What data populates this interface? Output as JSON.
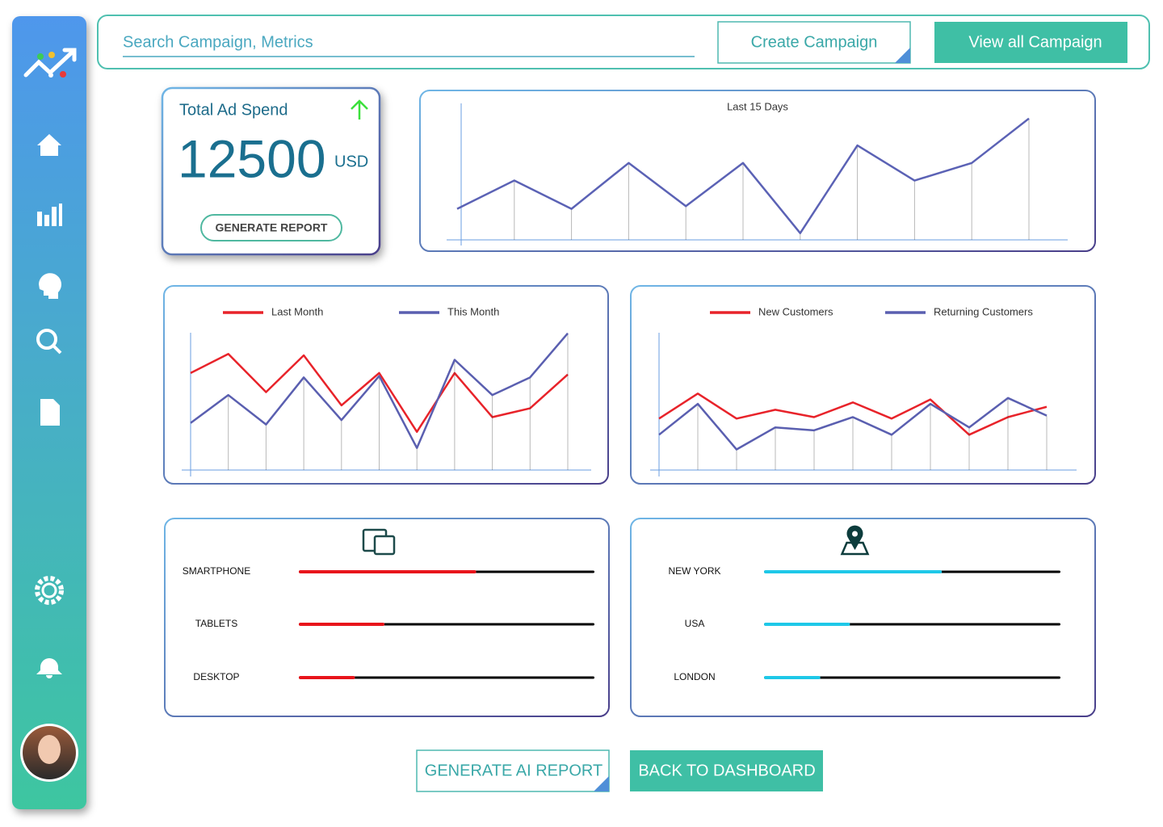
{
  "header": {
    "search_placeholder": "Search Campaign, Metrics",
    "create_button": "Create Campaign",
    "view_button": "View all Campaign"
  },
  "spend_card": {
    "title": "Total Ad Spend",
    "value": 12500,
    "unit": "USD",
    "button": "GENERATE REPORT"
  },
  "footer": {
    "ai_button": "GENERATE AI REPORT",
    "back_button": "BACK TO DASHBOARD"
  },
  "chart_data": [
    {
      "type": "line",
      "title": "Last 15 Days",
      "color": "#5b62b5",
      "ylim": [
        0,
        100
      ],
      "values": [
        23,
        44,
        23,
        57,
        25,
        57,
        5,
        70,
        44,
        57,
        90
      ]
    },
    {
      "type": "line",
      "ylim": [
        0,
        100
      ],
      "series": [
        {
          "name": "Last Month",
          "color": "#e8232a",
          "values": [
            66,
            79,
            53,
            78,
            44,
            66,
            26,
            66,
            36,
            42,
            65
          ]
        },
        {
          "name": "This Month",
          "color": "#5a5fb0",
          "values": [
            32,
            51,
            31,
            63,
            34,
            64,
            15,
            75,
            51,
            63,
            93
          ]
        }
      ]
    },
    {
      "type": "line",
      "ylim": [
        0,
        100
      ],
      "series": [
        {
          "name": "New Customers",
          "color": "#e8232a",
          "values": [
            35,
            52,
            35,
            41,
            36,
            46,
            35,
            48,
            24,
            36,
            43
          ]
        },
        {
          "name": "Returning Customers",
          "color": "#5a5fb0",
          "values": [
            24,
            45,
            14,
            29,
            27,
            36,
            24,
            45,
            29,
            49,
            37
          ]
        }
      ]
    },
    {
      "type": "bar",
      "orientation": "horizontal",
      "categories": [
        "SMARTPHONE",
        "TABLETS",
        "DESKTOP"
      ],
      "values": [
        60,
        29,
        19
      ],
      "color": "#e8141b",
      "track_color": "#000000",
      "xlim": [
        0,
        100
      ]
    },
    {
      "type": "bar",
      "orientation": "horizontal",
      "categories": [
        "NEW YORK",
        "USA",
        "LONDON"
      ],
      "values": [
        60,
        29,
        19
      ],
      "color": "#1ec8e8",
      "track_color": "#000000",
      "xlim": [
        0,
        100
      ]
    }
  ]
}
